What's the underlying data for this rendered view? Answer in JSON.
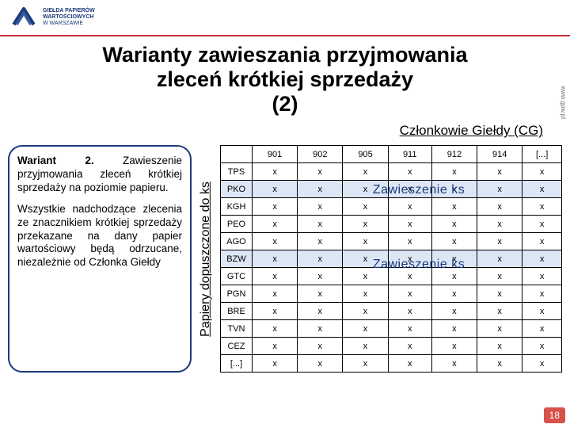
{
  "header": {
    "logo_lines": [
      "GIEŁDA PAPIERÓW",
      "WARTOŚCIOWYCH",
      "w Warszawie"
    ]
  },
  "title_line1": "Warianty zawieszania przyjmowania",
  "title_line2": "zleceń krótkiej sprzedaży",
  "title_line3": "(2)",
  "sub_heading": "Członkowie Giełdy (CG)",
  "left_box": {
    "p1_strong": "Wariant 2.",
    "p1_rest": "Zawieszenie przyjmowania zleceń krótkiej sprzedaży na poziomie papieru.",
    "p2": "Wszystkie nadchodzące zlecenia ze znacznikiem krótkiej sprzedaży przekazane na dany papier wartościowy będą odrzucane, niezależnie od Członka Giełdy"
  },
  "vertical_label": "Papiery dopuszczone do ks",
  "table": {
    "columns": [
      "901",
      "902",
      "905",
      "911",
      "912",
      "914",
      "[...]"
    ],
    "rows": [
      {
        "label": "TPS",
        "cells": [
          "x",
          "x",
          "x",
          "x",
          "x",
          "x",
          "x"
        ],
        "shade": false
      },
      {
        "label": "PKO",
        "cells": [
          "x",
          "x",
          "x",
          "x",
          "x",
          "x",
          "x"
        ],
        "shade": true
      },
      {
        "label": "KGH",
        "cells": [
          "x",
          "x",
          "x",
          "x",
          "x",
          "x",
          "x"
        ],
        "shade": false
      },
      {
        "label": "PEO",
        "cells": [
          "x",
          "x",
          "x",
          "x",
          "x",
          "x",
          "x"
        ],
        "shade": false
      },
      {
        "label": "AGO",
        "cells": [
          "x",
          "x",
          "x",
          "x",
          "x",
          "x",
          "x"
        ],
        "shade": false
      },
      {
        "label": "BZW",
        "cells": [
          "x",
          "x",
          "x",
          "x",
          "x",
          "x",
          "x"
        ],
        "shade": true
      },
      {
        "label": "GTC",
        "cells": [
          "x",
          "x",
          "x",
          "x",
          "x",
          "x",
          "x"
        ],
        "shade": false
      },
      {
        "label": "PGN",
        "cells": [
          "x",
          "x",
          "x",
          "x",
          "x",
          "x",
          "x"
        ],
        "shade": false
      },
      {
        "label": "BRE",
        "cells": [
          "x",
          "x",
          "x",
          "x",
          "x",
          "x",
          "x"
        ],
        "shade": false
      },
      {
        "label": "TVN",
        "cells": [
          "x",
          "x",
          "x",
          "x",
          "x",
          "x",
          "x"
        ],
        "shade": false
      },
      {
        "label": "CEZ",
        "cells": [
          "x",
          "x",
          "x",
          "x",
          "x",
          "x",
          "x"
        ],
        "shade": false
      },
      {
        "label": "[...]",
        "cells": [
          "x",
          "x",
          "x",
          "x",
          "x",
          "x",
          "x"
        ],
        "shade": false
      }
    ],
    "overlay_text": "Zawieszenie ks"
  },
  "slide_number": "18",
  "side_url": "www.gpw.pl",
  "colors": {
    "accent_red": "#c72f3a",
    "brand_blue": "#1a3a7a",
    "shade_bg": "#dde6f5",
    "badge_bg": "#d6524a"
  }
}
